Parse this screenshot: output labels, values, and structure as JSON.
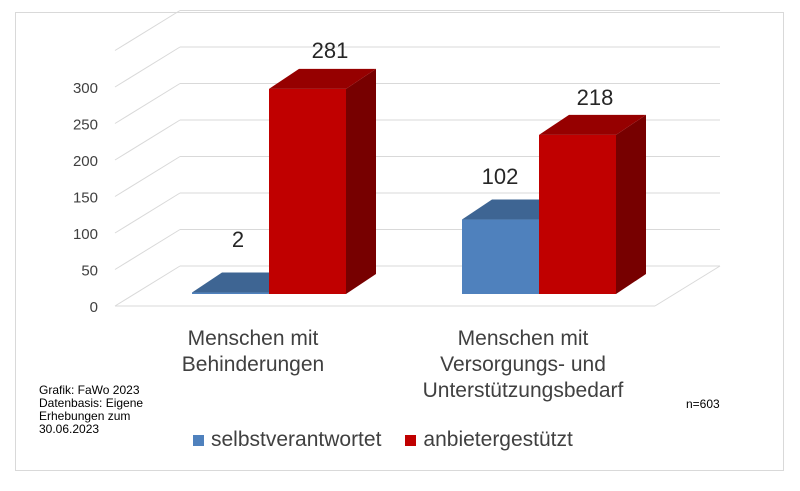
{
  "chart_data": {
    "type": "bar",
    "three_d": true,
    "categories": [
      [
        "Menschen mit",
        "Behinderungen"
      ],
      [
        "Menschen mit",
        "Versorgungs- und",
        "Unterstützungsbedarf"
      ]
    ],
    "series": [
      {
        "name": "selbstverantwortet",
        "values": [
          2,
          102
        ],
        "labels": [
          "2",
          "102"
        ],
        "color": "#4f81bd"
      },
      {
        "name": "anbietergestützt",
        "values": [
          281,
          218
        ],
        "labels": [
          "281",
          "218"
        ],
        "color": "#c00000"
      }
    ],
    "yticks": [
      "0",
      "50",
      "100",
      "150",
      "200",
      "250",
      "300"
    ],
    "ylim": [
      0,
      350
    ],
    "grid": true,
    "legend": "bottom"
  },
  "credit": [
    "Grafik: FaWo 2023",
    "Datenbasis: Eigene",
    "Erhebungen zum",
    "30.06.2023"
  ],
  "sample_size": "n=603"
}
